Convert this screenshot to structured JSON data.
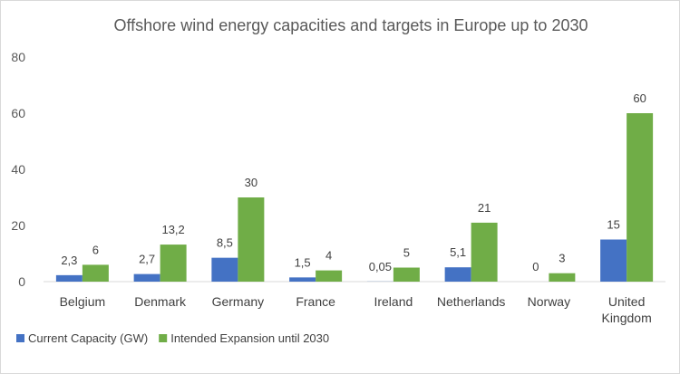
{
  "chart_data": {
    "type": "bar",
    "title": "Offshore wind energy capacities and targets in Europe up to 2030",
    "categories": [
      [
        "Belgium"
      ],
      [
        "Denmark"
      ],
      [
        "Germany"
      ],
      [
        "France"
      ],
      [
        "Ireland"
      ],
      [
        "Netherlands"
      ],
      [
        "Norway"
      ],
      [
        "United",
        "Kingdom"
      ]
    ],
    "series": [
      {
        "name": "Current Capacity (GW)",
        "color": "#4472C4",
        "values": [
          2.3,
          2.7,
          8.5,
          1.5,
          0.05,
          5.1,
          0,
          15
        ],
        "labels": [
          "2,3",
          "2,7",
          "8,5",
          "1,5",
          "0,05",
          "5,1",
          "0",
          "15"
        ]
      },
      {
        "name": "Intended Expansion until 2030",
        "color": "#70AD47",
        "values": [
          6,
          13.2,
          30,
          4,
          5,
          21,
          3,
          60
        ],
        "labels": [
          "6",
          "13,2",
          "30",
          "4",
          "5",
          "21",
          "3",
          "60"
        ]
      }
    ],
    "ylim": [
      0,
      80
    ],
    "yticks": [
      0,
      20,
      40,
      60,
      80
    ],
    "xlabel": "",
    "ylabel": "",
    "grid": false,
    "legend_position": "bottom-left"
  }
}
